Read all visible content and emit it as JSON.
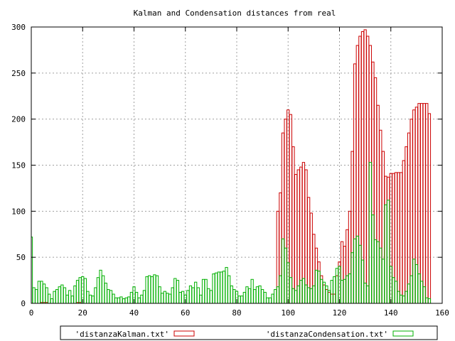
{
  "chart_data": {
    "type": "bar",
    "title": "Kalman and Condensation distances from real",
    "xlim": [
      0,
      160
    ],
    "ylim": [
      0,
      300
    ],
    "xticks": [
      0,
      20,
      40,
      60,
      80,
      100,
      120,
      140,
      160
    ],
    "yticks": [
      0,
      50,
      100,
      150,
      200,
      250,
      300
    ],
    "grid": true,
    "legend_position": "bottom",
    "x": [
      0,
      1,
      2,
      3,
      4,
      5,
      6,
      7,
      8,
      9,
      10,
      11,
      12,
      13,
      14,
      15,
      16,
      17,
      18,
      19,
      20,
      21,
      22,
      23,
      24,
      25,
      26,
      27,
      28,
      29,
      30,
      31,
      32,
      33,
      34,
      35,
      36,
      37,
      38,
      39,
      40,
      41,
      42,
      43,
      44,
      45,
      46,
      47,
      48,
      49,
      50,
      51,
      52,
      53,
      54,
      55,
      56,
      57,
      58,
      59,
      60,
      61,
      62,
      63,
      64,
      65,
      66,
      67,
      68,
      69,
      70,
      71,
      72,
      73,
      74,
      75,
      76,
      77,
      78,
      79,
      80,
      81,
      82,
      83,
      84,
      85,
      86,
      87,
      88,
      89,
      90,
      91,
      92,
      93,
      94,
      95,
      96,
      97,
      98,
      99,
      100,
      101,
      102,
      103,
      104,
      105,
      106,
      107,
      108,
      109,
      110,
      111,
      112,
      113,
      114,
      115,
      116,
      117,
      118,
      119,
      120,
      121,
      122,
      123,
      124,
      125,
      126,
      127,
      128,
      129,
      130,
      131,
      132,
      133,
      134,
      135,
      136,
      137,
      138,
      139,
      140,
      141,
      142,
      143,
      144,
      145,
      146,
      147,
      148,
      149,
      150,
      151,
      152,
      153,
      154,
      155
    ],
    "series": [
      {
        "name": "'distanzaKalman.txt'",
        "color": "#cc0000",
        "values": [
          0,
          0,
          0,
          0,
          1,
          1,
          1,
          0,
          0,
          0,
          0,
          0,
          0,
          0,
          0,
          0,
          0,
          0,
          1,
          1,
          0,
          0,
          0,
          0,
          0,
          0,
          0,
          0,
          0,
          0,
          0,
          0,
          0,
          0,
          0,
          0,
          0,
          0,
          0,
          0,
          0,
          0,
          0,
          0,
          0,
          0,
          0,
          0,
          0,
          0,
          0,
          0,
          0,
          0,
          0,
          0,
          0,
          0,
          0,
          0,
          0,
          0,
          0,
          0,
          0,
          0,
          0,
          0,
          0,
          0,
          0,
          0,
          0,
          0,
          0,
          0,
          0,
          0,
          0,
          0,
          0,
          0,
          0,
          0,
          0,
          0,
          0,
          0,
          0,
          0,
          0,
          0,
          0,
          0,
          0,
          0,
          100,
          120,
          185,
          200,
          210,
          205,
          170,
          140,
          145,
          148,
          153,
          145,
          115,
          98,
          75,
          60,
          45,
          30,
          20,
          15,
          12,
          10,
          10,
          30,
          45,
          67,
          62,
          80,
          100,
          165,
          260,
          280,
          290,
          295,
          297,
          290,
          280,
          262,
          245,
          215,
          188,
          165,
          138,
          137,
          141,
          141,
          142,
          142,
          142,
          155,
          170,
          185,
          200,
          210,
          213,
          217,
          217,
          217,
          217,
          206
        ]
      },
      {
        "name": "'distanzaCondensation.txt'",
        "color": "#00b000",
        "values": [
          72,
          17,
          15,
          24,
          24,
          21,
          17,
          10,
          5,
          13,
          15,
          18,
          20,
          17,
          9,
          14,
          8,
          19,
          25,
          28,
          29,
          27,
          13,
          9,
          8,
          17,
          28,
          36,
          30,
          22,
          15,
          14,
          10,
          6,
          6,
          7,
          5,
          6,
          7,
          12,
          18,
          12,
          6,
          9,
          14,
          29,
          30,
          29,
          31,
          30,
          18,
          11,
          13,
          11,
          10,
          17,
          27,
          25,
          12,
          13,
          9,
          14,
          19,
          17,
          23,
          17,
          9,
          26,
          26,
          16,
          14,
          32,
          33,
          34,
          34,
          35,
          39,
          30,
          19,
          15,
          13,
          8,
          8,
          12,
          18,
          16,
          26,
          15,
          18,
          19,
          15,
          12,
          6,
          6,
          10,
          15,
          18,
          30,
          70,
          60,
          44,
          28,
          16,
          14,
          19,
          25,
          27,
          20,
          17,
          16,
          19,
          36,
          35,
          26,
          23,
          19,
          14,
          25,
          29,
          38,
          40,
          25,
          26,
          30,
          32,
          55,
          70,
          73,
          63,
          47,
          22,
          19,
          153,
          96,
          69,
          67,
          60,
          48,
          107,
          112,
          40,
          28,
          24,
          13,
          9,
          8,
          13,
          21,
          30,
          48,
          42,
          32,
          24,
          18,
          6,
          5
        ]
      }
    ]
  }
}
